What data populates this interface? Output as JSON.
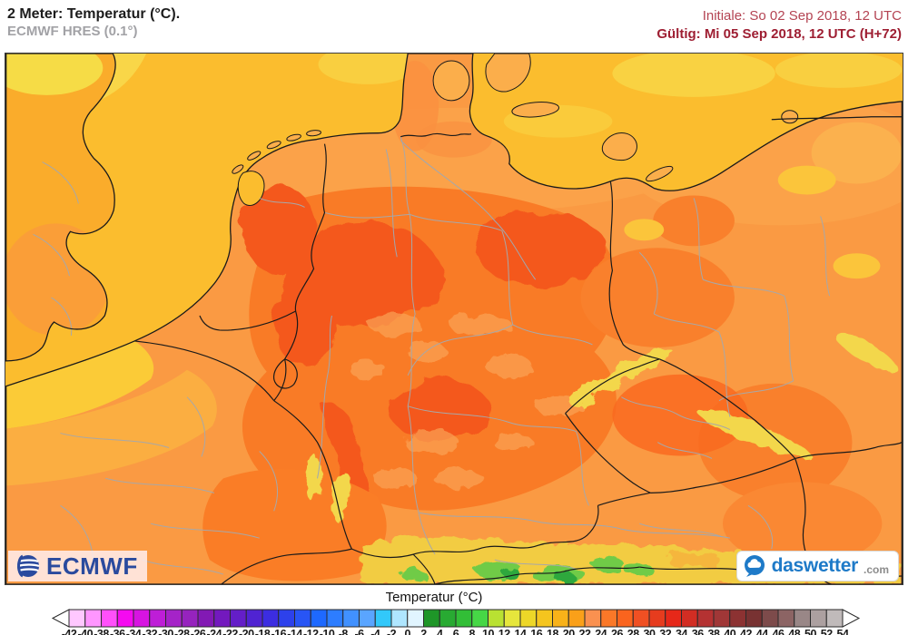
{
  "header": {
    "title": "2 Meter: Temperatur (°C).",
    "subtitle": "ECMWF HRES (0.1°)",
    "init_label": "Initiale: So 02 Sep 2018, 12 UTC",
    "valid_label": "Gültig: Mi 05 Sep 2018, 12 UTC (H+72)"
  },
  "logos": {
    "ecmwf_text": "ECMWF",
    "daswetter_text": "daswetter",
    "daswetter_tld": ".com"
  },
  "legend": {
    "title": "Temperatur (°C)",
    "unit": "°C",
    "step": 2,
    "min": -42,
    "max": 54,
    "tick_values": [
      -42,
      -40,
      -38,
      -36,
      -34,
      -32,
      -30,
      -28,
      -26,
      -24,
      -22,
      -20,
      -18,
      -16,
      -14,
      -12,
      -10,
      -8,
      -6,
      -4,
      -2,
      0,
      2,
      4,
      6,
      8,
      10,
      12,
      14,
      16,
      18,
      20,
      22,
      24,
      26,
      28,
      30,
      32,
      34,
      36,
      38,
      40,
      42,
      44,
      46,
      48,
      50,
      52,
      54
    ],
    "cell_colors": [
      "#FFC8FF",
      "#FF96FF",
      "#FF50FA",
      "#F50AF0",
      "#D714E1",
      "#BE1ED7",
      "#A523C8",
      "#9623BE",
      "#8219B4",
      "#7319BE",
      "#641EC8",
      "#5023D2",
      "#3C2DE1",
      "#2D41EB",
      "#2855F5",
      "#1E69FF",
      "#2D7DFF",
      "#4191FF",
      "#5AA5FF",
      "#32C8FA",
      "#AFE6FF",
      "#E1F5FF",
      "#1E9628",
      "#28AA32",
      "#32BE37",
      "#46D746",
      "#B9E132",
      "#E6E63C",
      "#EDD728",
      "#F5C51E",
      "#F8B219",
      "#FAA019",
      "#FA9150",
      "#FA7828",
      "#FA641E",
      "#F05023",
      "#E63C1E",
      "#E62819",
      "#D22D23",
      "#B43232",
      "#A03737",
      "#8C3232",
      "#783232",
      "#7D4B4B",
      "#8C6464",
      "#998787",
      "#ACA0A0",
      "#C0BABA"
    ]
  },
  "colors": {
    "title_text": "#1c1c1c",
    "subtitle_text": "#a2a2a6",
    "init_text": "#b44453",
    "valid_text": "#9e1e32",
    "sea": "#FBBD2E",
    "sea_pale": "#F8DB4C",
    "land_base": "#FA9A43",
    "germany_interior": "#F97B26",
    "hot_patch": "#F4591C",
    "alps_yellow": "#F2CC42",
    "alps_green": "#6FCB47",
    "ecmwf_blue": "#2a4a9e",
    "daswetter_blue": "#1e7ac8",
    "legend_tick_text": "#1a1a1a"
  }
}
